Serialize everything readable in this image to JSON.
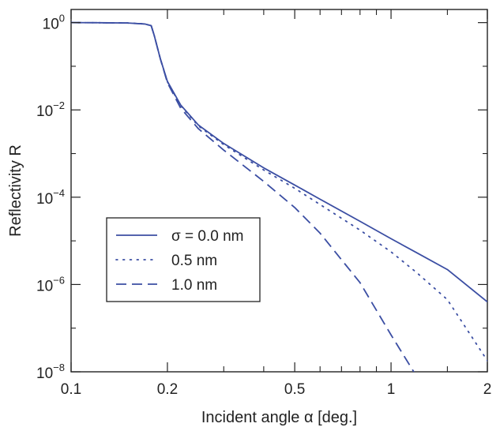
{
  "chart_data": {
    "type": "line",
    "xlabel": "Incident angle α [deg.]",
    "ylabel": "Reflectivity R",
    "x_scale": "log",
    "y_scale": "log",
    "xlim": [
      0.1,
      2
    ],
    "ylim": [
      1e-08,
      2
    ],
    "x_ticks": [
      {
        "value": 0.1,
        "label": "0.1"
      },
      {
        "value": 0.2,
        "label": "0.2"
      },
      {
        "value": 0.5,
        "label": "0.5"
      },
      {
        "value": 1,
        "label": "1"
      },
      {
        "value": 2,
        "label": "2"
      }
    ],
    "x_minor_ticks": [
      0.3,
      0.4,
      0.6,
      0.7,
      0.8,
      0.9,
      1.5
    ],
    "y_ticks": [
      {
        "value": 1,
        "base": "10",
        "exp": "0"
      },
      {
        "value": 0.01,
        "base": "10",
        "exp": "−2"
      },
      {
        "value": 0.0001,
        "base": "10",
        "exp": "−4"
      },
      {
        "value": 1e-06,
        "base": "10",
        "exp": "−6"
      },
      {
        "value": 1e-08,
        "base": "10",
        "exp": "−8"
      }
    ],
    "grid": false,
    "legend": {
      "position": "lower-left",
      "entries": [
        {
          "label": "σ = 0.0 nm",
          "style": "solid"
        },
        {
          "label": "0.5 nm",
          "style": "dotted"
        },
        {
          "label": "1.0 nm",
          "style": "dashed"
        }
      ]
    },
    "series": [
      {
        "name": "σ = 0.0 nm",
        "style": "solid",
        "x": [
          0.1,
          0.12,
          0.15,
          0.17,
          0.178,
          0.182,
          0.19,
          0.2,
          0.22,
          0.25,
          0.3,
          0.4,
          0.5,
          0.6,
          0.8,
          1.0,
          1.2,
          1.5,
          2.0
        ],
        "y": [
          1.0,
          0.995,
          0.98,
          0.93,
          0.85,
          0.5,
          0.15,
          0.045,
          0.013,
          0.0045,
          0.0017,
          0.00047,
          0.00019,
          9e-05,
          2.8e-05,
          1.12e-05,
          5.4e-06,
          2.2e-06,
          4e-07
        ]
      },
      {
        "name": "0.5 nm",
        "style": "dotted",
        "x": [
          0.1,
          0.12,
          0.15,
          0.17,
          0.178,
          0.182,
          0.19,
          0.2,
          0.22,
          0.25,
          0.3,
          0.4,
          0.5,
          0.6,
          0.8,
          1.0,
          1.2,
          1.5,
          2.0
        ],
        "y": [
          1.0,
          0.995,
          0.98,
          0.93,
          0.85,
          0.5,
          0.15,
          0.044,
          0.0125,
          0.0043,
          0.0016,
          0.00042,
          0.00016,
          6.8e-05,
          1.76e-05,
          5.6e-06,
          1.9e-06,
          4.5e-07,
          1.8e-08
        ]
      },
      {
        "name": "1.0 nm",
        "style": "dashed",
        "x": [
          0.1,
          0.12,
          0.15,
          0.17,
          0.178,
          0.182,
          0.19,
          0.2,
          0.22,
          0.25,
          0.3,
          0.4,
          0.5,
          0.6,
          0.8,
          1.0,
          1.2,
          1.4,
          1.52
        ],
        "y": [
          1.0,
          0.995,
          0.98,
          0.93,
          0.85,
          0.5,
          0.15,
          0.042,
          0.011,
          0.0037,
          0.0012,
          0.00023,
          5.8e-05,
          1.5e-05,
          1.1e-06,
          7e-08,
          8e-09,
          1.8e-09,
          1e-08
        ]
      }
    ]
  },
  "colors": {
    "series": "#3b4ea3",
    "axis": "#222222"
  }
}
